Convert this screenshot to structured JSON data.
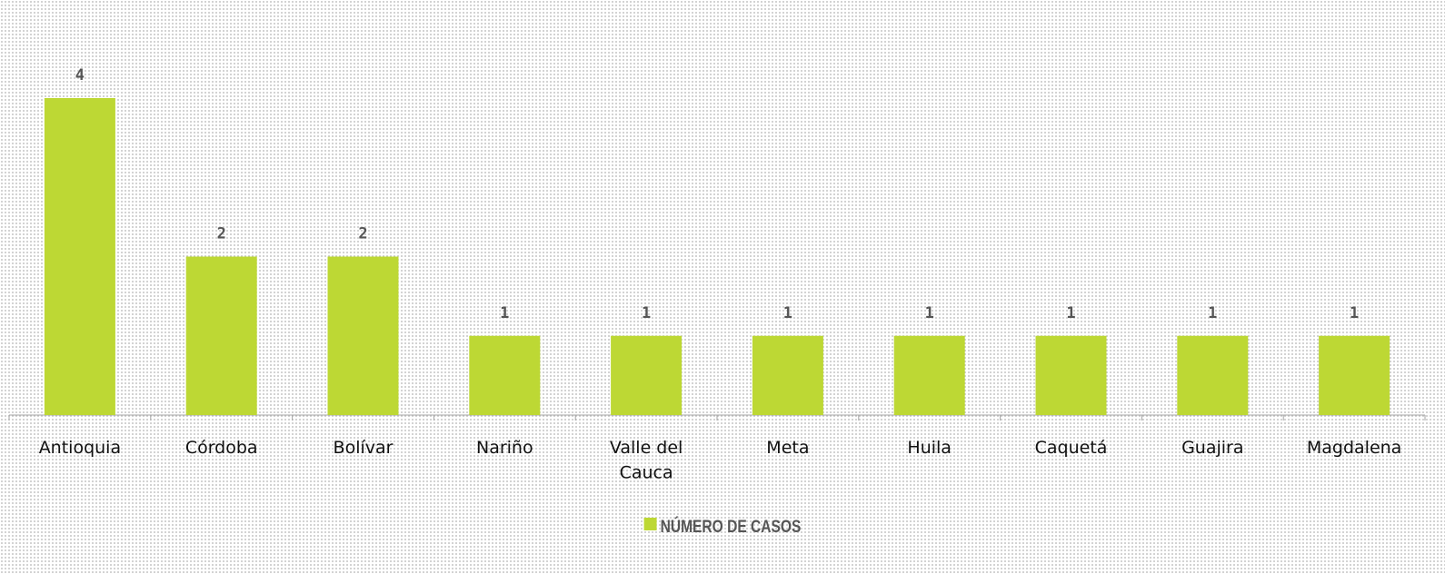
{
  "chart_data": {
    "type": "bar",
    "categories": [
      "Antioquia",
      "Córdoba",
      "Bolívar",
      "Nariño",
      "Valle del Cauca",
      "Meta",
      "Huila",
      "Caquetá",
      "Guajira",
      "Magdalena"
    ],
    "series": [
      {
        "name": "NÚMERO DE CASOS",
        "color": "#bdd834",
        "values": [
          4,
          2,
          2,
          1,
          1,
          1,
          1,
          1,
          1,
          1
        ]
      }
    ],
    "ylim": [
      0,
      4
    ],
    "legend": "bottom",
    "data_labels": true
  }
}
